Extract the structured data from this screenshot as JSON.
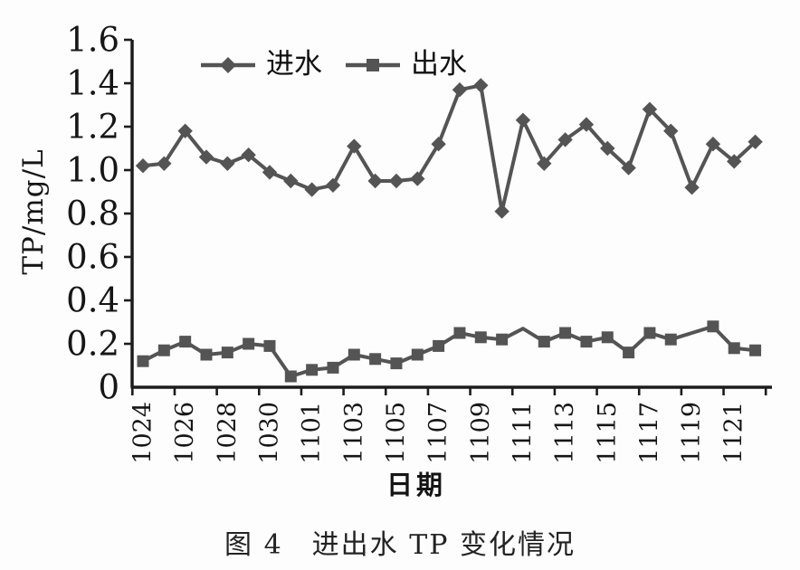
{
  "figure": {
    "caption": "图 4　进出水 TP 变化情况"
  },
  "chart_data": {
    "type": "line",
    "title": "",
    "xlabel": "日期",
    "ylabel": "TP/mg/L",
    "ylim": [
      0,
      1.6
    ],
    "grid": "off",
    "legend_position": "top-center",
    "line_color": "#545454",
    "axis_color": "#1c1c1c",
    "ytick_labels": [
      "0",
      "0.2",
      "0.4",
      "0.6",
      "0.8",
      "1.0",
      "1.2",
      "1.4",
      "1.6"
    ],
    "ytick_values": [
      0,
      0.2,
      0.4,
      0.6,
      0.8,
      1.0,
      1.2,
      1.4,
      1.6
    ],
    "x_categories": [
      "1024",
      "1025",
      "1026",
      "1027",
      "1028",
      "1029",
      "1030",
      "1031",
      "1101",
      "1102",
      "1103",
      "1104",
      "1105",
      "1106",
      "1107",
      "1108",
      "1109",
      "1110",
      "1111",
      "1112",
      "1113",
      "1114",
      "1115",
      "1116",
      "1117",
      "1118",
      "1119",
      "1120",
      "1121",
      "1122"
    ],
    "xtick_labels": [
      "1024",
      "1026",
      "1028",
      "1030",
      "1101",
      "1103",
      "1105",
      "1107",
      "1109",
      "1111",
      "1113",
      "1115",
      "1117",
      "1119",
      "1121"
    ],
    "series": [
      {
        "name": "进水",
        "marker": "diamond",
        "values": [
          1.02,
          1.03,
          1.18,
          1.06,
          1.03,
          1.07,
          0.99,
          0.95,
          0.91,
          0.93,
          1.11,
          0.95,
          0.95,
          0.96,
          1.12,
          1.37,
          1.39,
          0.81,
          1.23,
          1.03,
          1.14,
          1.21,
          1.1,
          1.01,
          1.28,
          1.18,
          0.92,
          1.12,
          1.04,
          1.13
        ]
      },
      {
        "name": "出水",
        "marker": "square",
        "values": [
          0.12,
          0.17,
          0.21,
          0.15,
          0.16,
          0.2,
          0.19,
          0.05,
          0.08,
          0.09,
          0.15,
          0.13,
          0.11,
          0.15,
          0.19,
          0.25,
          0.23,
          0.22,
          0.27,
          0.21,
          0.25,
          0.21,
          0.23,
          0.16,
          0.25,
          0.22,
          0.25,
          0.28,
          0.18,
          0.17
        ],
        "hidden_marker_indices": [
          18,
          26
        ]
      }
    ]
  }
}
